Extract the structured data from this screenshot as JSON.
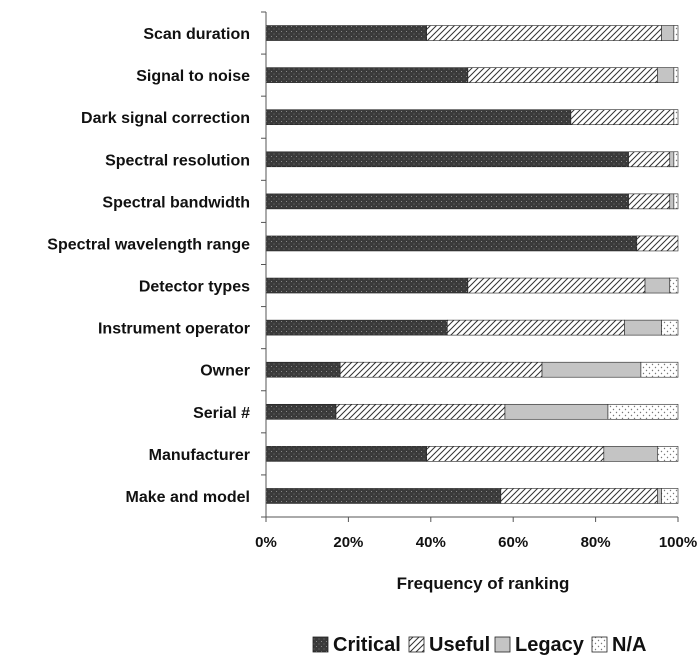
{
  "chart_data": {
    "type": "bar",
    "stacked": true,
    "orientation": "horizontal",
    "xlabel": "Frequency of ranking",
    "ylabel": "",
    "xlim": [
      0,
      100
    ],
    "x_ticks": [
      "0%",
      "20%",
      "40%",
      "60%",
      "80%",
      "100%"
    ],
    "categories": [
      "Scan duration",
      "Signal to noise",
      "Dark signal correction",
      "Spectral resolution",
      "Spectral bandwidth",
      "Spectral wavelength range",
      "Detector types",
      "Instrument operator",
      "Owner",
      "Serial #",
      "Manufacturer",
      "Make and model"
    ],
    "series": [
      {
        "name": "Critical",
        "values": [
          39,
          49,
          74,
          88,
          88,
          90,
          49,
          44,
          18,
          17,
          39,
          57
        ]
      },
      {
        "name": "Useful",
        "values": [
          57,
          46,
          25,
          10,
          10,
          10,
          43,
          43,
          49,
          41,
          43,
          38
        ]
      },
      {
        "name": "Legacy",
        "values": [
          3,
          4,
          0,
          1,
          1,
          0,
          6,
          9,
          24,
          25,
          13,
          1
        ]
      },
      {
        "name": "N/A",
        "values": [
          1,
          1,
          1,
          1,
          1,
          0,
          2,
          4,
          9,
          17,
          5,
          4
        ]
      }
    ],
    "legend_position": "bottom",
    "grid": false
  }
}
